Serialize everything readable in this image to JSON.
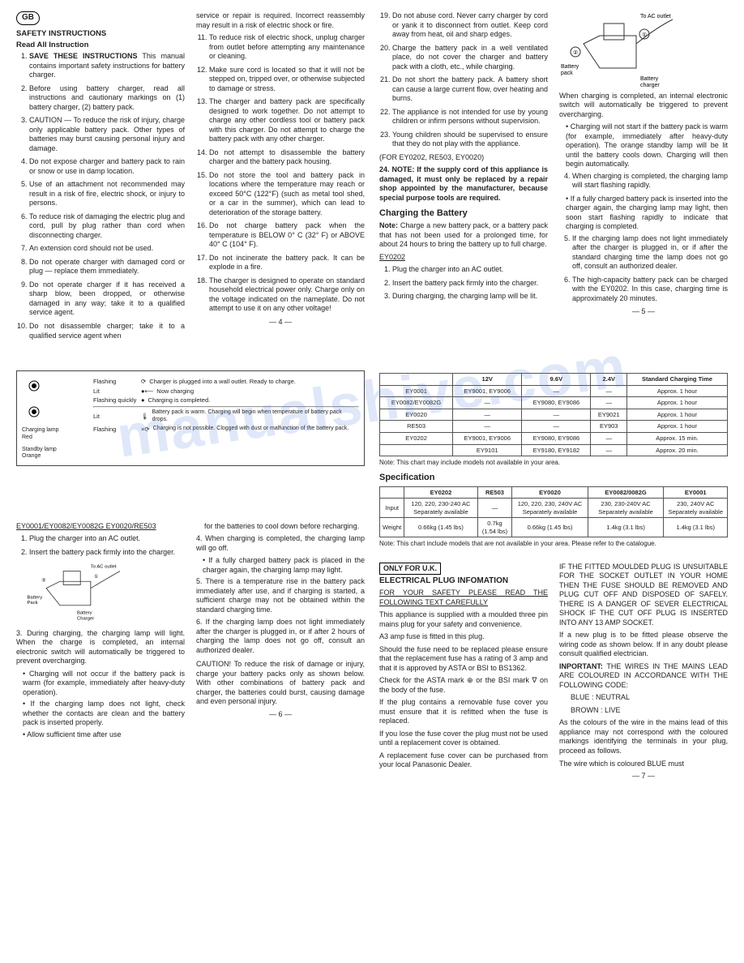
{
  "gb_badge": "GB",
  "p4": {
    "h1": "SAFETY INSTRUCTIONS",
    "h2": "Read All Instruction",
    "list1": [
      "SAVE THESE INSTRUCTIONS This manual contains important safety instructions for battery charger.",
      "Before using battery charger, read all instructions and cautionary markings on (1) battery charger, (2) battery pack.",
      "CAUTION — To reduce the risk of injury, charge only applicable battery pack. Other types of batteries may burst causing personal injury and damage.",
      "Do not expose charger and battery pack to rain or snow or use in damp location.",
      "Use of an attachment not recommended may result in a risk of fire, electric shock, or injury to persons.",
      "To reduce risk of damaging the electric plug and cord, pull by plug rather than cord when disconnecting charger.",
      "An extension cord should not be used.",
      "Do not operate charger with damaged cord or plug — replace them immediately.",
      "Do not operate charger if it has received a sharp blow, been dropped, or otherwise damaged in any way; take it to a qualified service agent.",
      "Do not disassemble charger; take it to a qualified service agent when"
    ],
    "col2_top": "service or repair is required. Incorrect reassembly may result in a risk of electric shock or fire.",
    "list2": [
      "To reduce risk of electric shock, unplug charger from outlet before attempting any maintenance or cleaning.",
      "Make sure cord is located so that it will not be stepped on, tripped over, or otherwise subjected to damage or stress.",
      "The charger and battery pack are specifically designed to work together. Do not attempt to charge any other cordless tool or battery pack with this charger. Do not attempt to charge the battery pack with any other charger.",
      "Do not attempt to disassemble the battery charger and the battery pack housing.",
      "Do not store the tool and battery pack in locations where the temperature may reach or exceed 50°C (122°F) (such as metal tool shed, or a car in the summer), which can lead to deterioration of the storage battery.",
      "Do not charge battery pack when the temperature is BELOW 0° C (32° F) or ABOVE 40° C (104° F).",
      "Do not incinerate the battery pack. It can be explode in a fire.",
      "The charger is designed to operate on standard household electrical power only. Charge only on the voltage indicated on the nameplate. Do not attempt to use it on any other voltage!"
    ],
    "pn": "— 4 —"
  },
  "p5": {
    "list19": [
      "Do not abuse cord. Never carry charger by cord or yank it to disconnect from outlet. Keep cord away from heat, oil and sharp edges.",
      "Charge the battery pack in a well ventilated place, do not cover the charger and battery pack with a cloth, etc., while charging.",
      "Do not short the battery pack. A battery short can cause a large current flow, over heating and burns.",
      "The appliance is not intended for use by young children or infirm persons without supervision.",
      "Young children should be supervised to ensure that they do not play with the appliance."
    ],
    "for": "(FOR EY0202, RE503, EY0020)",
    "n24": "NOTE: If the supply cord of this appliance is damaged, it must only be replaced by a repair shop appointed by the manufacturer, because special purpose tools are required.",
    "h_charge": "Charging the Battery",
    "note": "Note:",
    "note_text": "Charge a new battery pack, or a battery pack that has not been used for a prolonged time, for about 24 hours to bring the battery up to full charge.",
    "ey": "EY0202",
    "steps": [
      "Plug the charger into an AC outlet.",
      "Insert the battery pack firmly into the charger.",
      "During charging, the charging lamp will be lit."
    ],
    "labels": {
      "ac": "To AC outlet",
      "bp": "Battery pack",
      "bc": "Battery charger"
    },
    "right": [
      "When charging is completed, an internal electronic switch will automatically be triggered to prevent overcharging.",
      "Charging will not start if the battery pack is warm (for example, immediately after heavy-duty operation). The orange standby lamp will be lit until the battery cools down. Charging will then begin automatically."
    ],
    "items": [
      "When charging is completed, the charging lamp will start flashing rapidly.",
      "If a fully charged battery pack is inserted into the charger again, the charging lamp may light, then soon start flashing rapidly to indicate that charging is completed.",
      "If the charging lamp does not light immediately after the charger is plugged in, or if after the standard charging time the lamp does not go off, consult an authorized dealer.",
      "The high-capacity battery pack can be charged with the EY0202. In this case, charging time is approximately 20 minutes."
    ],
    "pn": "— 5 —"
  },
  "p6": {
    "diag": {
      "cl": "Charging lamp",
      "red": "Red",
      "sl": "Standby lamp",
      "or": "Orange",
      "flash": "Flashing",
      "lit": "Lit",
      "fq": "Flashing quickly",
      "d1": "Charger is plugged into a wall outlet. Ready to charge.",
      "d2": "Now charging",
      "d3": "Charging is completed.",
      "d4": "Battery pack is warm. Charging will begin when temperature of battery pack drops.",
      "d5": "Charging is not possible. Clogged with dust or malfunction of the battery pack."
    },
    "models": "EY0001/EY0082/EY0082G EY0020/RE503",
    "steps": [
      "Plug the charger into an AC outlet.",
      "Insert the battery pack firmly into the charger."
    ],
    "labels": {
      "ac": "To AC outlet",
      "bp": "Battery Pack",
      "bc": "Battery Charger"
    },
    "p3": "During charging, the charging lamp will light. When the charge is completed, an internal electronic switch will automatically be triggered to prevent overcharging.",
    "bul": [
      "Charging will not occur if the battery pack is warm (for example, immediately after heavy-duty operation).",
      "If the charging lamp does not light, check whether the contacts are clean and the battery pack is inserted properly.",
      "Allow sufficient time after use"
    ],
    "col2": [
      "for the batteries to cool down before recharging.",
      "When charging is completed, the charging lamp will go off.",
      "If a fully charged battery pack is placed in the charger again, the charging lamp may light.",
      "There is a temperature rise in the battery pack immediately after use, and if charging is started, a sufficient charge may not be obtained within the standard charging time.",
      "If the charging lamp does not light immediately after the charger is plugged in, or if after 2 hours of charging the lamp does not go off, consult an authorized dealer."
    ],
    "caution": "CAUTION! To reduce the risk of damage or injury, charge your battery packs only as shown below. With other combinations of battery pack and charger, the batteries could burst, causing damage and even personal injury.",
    "pn": "— 6 —"
  },
  "p7": {
    "t1": {
      "head": [
        "",
        "12V",
        "9.6V",
        "2.4V",
        "Standard Charging Time"
      ],
      "rows": [
        [
          "EY0001",
          "EY9001, EY9006",
          "—",
          "—",
          "Approx. 1 hour"
        ],
        [
          "EY0082/EY0082G",
          "—",
          "EY9080, EY9086",
          "—",
          "Approx. 1 hour"
        ],
        [
          "EY0020",
          "—",
          "—",
          "EY9021",
          "Approx. 1 hour"
        ],
        [
          "RE503",
          "—",
          "—",
          "EY903",
          "Approx. 1 hour"
        ],
        [
          "EY0202",
          "EY9001, EY9006",
          "EY9080, EY9086",
          "—",
          "Approx. 15 min."
        ],
        [
          "",
          "EY9101",
          "EY9180, EY9182",
          "—",
          "Approx. 20 min."
        ]
      ]
    },
    "note1": "Note: This chart may include models not available in your area.",
    "spec": "Specification",
    "t2": {
      "head": [
        "",
        "EY0202",
        "RE503",
        "EY0020",
        "EY0082/0082G",
        "EY0001"
      ],
      "r1": [
        "Input",
        "120, 220, 230-240 AC Separately available",
        "—",
        "120, 220, 230, 240V AC Separately available",
        "230, 230-240V AC Separately available",
        "230, 240V AC Separately available"
      ],
      "r2": [
        "Weight",
        "0.66kg (1.45 lbs)",
        "0.7kg (1.54 lbs)",
        "0.66kg (1.45 lbs)",
        "1.4kg (3.1 lbs)",
        "1.4kg (3.1 lbs)"
      ]
    },
    "note2": "Note: This chart include models that are not available in your area. Please refer to the catalogue.",
    "uk": "ONLY FOR U.K.",
    "h_elec": "ELECTRICAL PLUG INFOMATION",
    "safety": "FOR YOUR SAFETY PLEASE READ THE FOLLOWING TEXT CAREFULLY",
    "left": [
      "This appliance is supplied with a moulded three pin mains plug for your safety and convenience.",
      "A3 amp fuse is fitted in this plug.",
      "Should the fuse need to be replaced please ensure that the replacement fuse has a rating of 3 amp and that it is approved by ASTA or BSI to BS1362.",
      "Check for the ASTA mark ⊕ or the BSI mark ∇ on the body of the fuse.",
      "If the plug contains a removable fuse cover you must ensure that it is refitted when the fuse is replaced.",
      "If you lose the fuse cover the plug must not be used until a replacement cover is obtained.",
      "A replacement fuse cover can be purchased from your local Panasonic Dealer."
    ],
    "right": [
      "IF THE FITTED MOULDED PLUG IS UNSUITABLE FOR THE SOCKET OUTLET IN YOUR HOME THEN THE FUSE SHOULD BE REMOVED AND PLUG CUT OFF AND DISPOSED OF SAFELY. THERE IS A DANGER OF SEVER ELECTRICAL SHOCK IF THE CUT OFF PLUG IS INSERTED INTO ANY 13 AMP SOCKET.",
      "If a new plug is to be fitted please observe the wiring code as shown below. If in any doubt please consult qualified electrician."
    ],
    "imp": "INPORTANT:",
    "imp_text": "THE WIRES IN THE MAINS LEAD ARE COLOURED IN ACCORDANCE WITH THE FOLLOWING CODE:",
    "blue": "BLUE : NEUTRAL",
    "brown": "BROWN : LIVE",
    "tail": "As the colours of the wire in the mains lead of this appliance may not correspond with the coloured markings identifying the terminals in your plug, proceed as follows.",
    "tail2": "The wire which is coloured BLUE must",
    "pn": "— 7 —"
  }
}
